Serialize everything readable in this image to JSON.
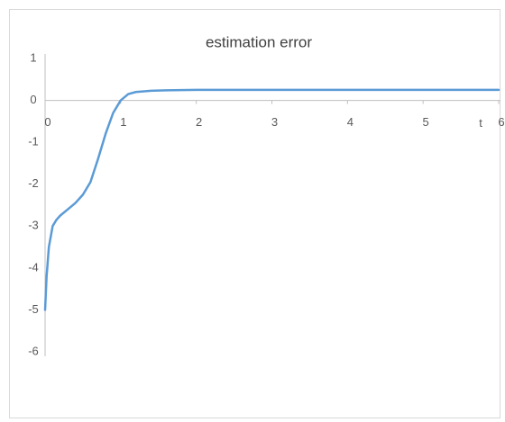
{
  "chart_data": {
    "type": "line",
    "title": "estimation error",
    "x_label": "t",
    "x": [
      0,
      0.02,
      0.05,
      0.1,
      0.15,
      0.2,
      0.3,
      0.4,
      0.5,
      0.6,
      0.7,
      0.8,
      0.9,
      1.0,
      1.1,
      1.2,
      1.4,
      1.6,
      2,
      3,
      4,
      5,
      6
    ],
    "series": [
      {
        "name": "estimation error",
        "color": "#5b9bd5",
        "values": [
          -5,
          -4.2,
          -3.5,
          -3.0,
          -2.85,
          -2.75,
          -2.6,
          -2.45,
          -2.25,
          -1.95,
          -1.4,
          -0.8,
          -0.3,
          0.0,
          0.15,
          0.2,
          0.23,
          0.24,
          0.25,
          0.25,
          0.25,
          0.25,
          0.25
        ]
      }
    ],
    "xlim": [
      0,
      6
    ],
    "xticks": [
      0,
      1,
      2,
      3,
      4,
      5,
      6
    ],
    "ylim": [
      -6,
      1
    ],
    "yticks": [
      -6,
      -5,
      -4,
      -3,
      -2,
      -1,
      0,
      1
    ],
    "grid": false
  }
}
